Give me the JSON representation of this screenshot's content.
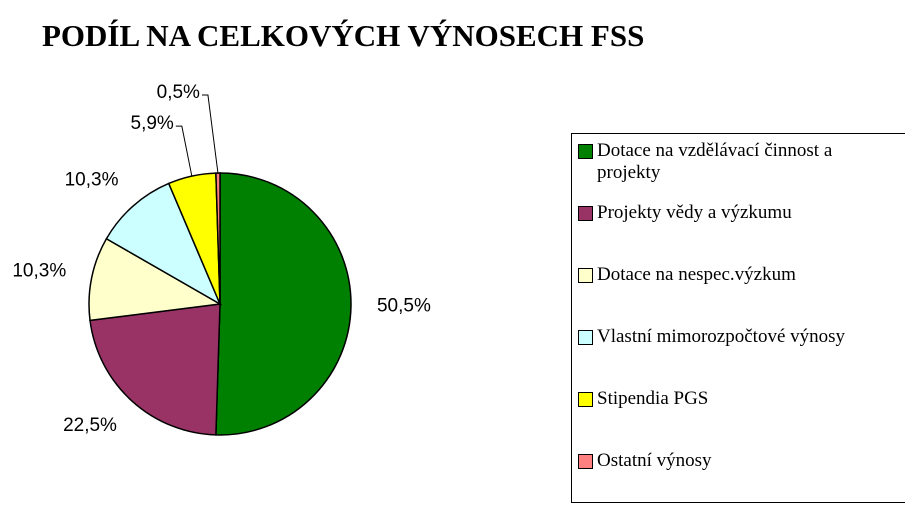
{
  "chart_data": {
    "type": "pie",
    "title": "PODÍL NA CELKOVÝCH VÝNOSECH FSS",
    "categories": [
      "Dotace na vzdělávací činnost a projekty",
      "Projekty vědy a výzkumu",
      "Dotace na nespec.výzkum",
      "Vlastní mimorozpočtové výnosy",
      "Stipendia PGS",
      "Ostatní výnosy"
    ],
    "values": [
      50.5,
      22.5,
      10.3,
      10.3,
      5.9,
      0.5
    ],
    "value_labels": [
      "50,5%",
      "22,5%",
      "10,3%",
      "10,3%",
      "5,9%",
      "0,5%"
    ],
    "colors": [
      "#008000",
      "#993366",
      "#ffffcc",
      "#ccffff",
      "#ffff00",
      "#ff8080"
    ],
    "legend": "right"
  }
}
